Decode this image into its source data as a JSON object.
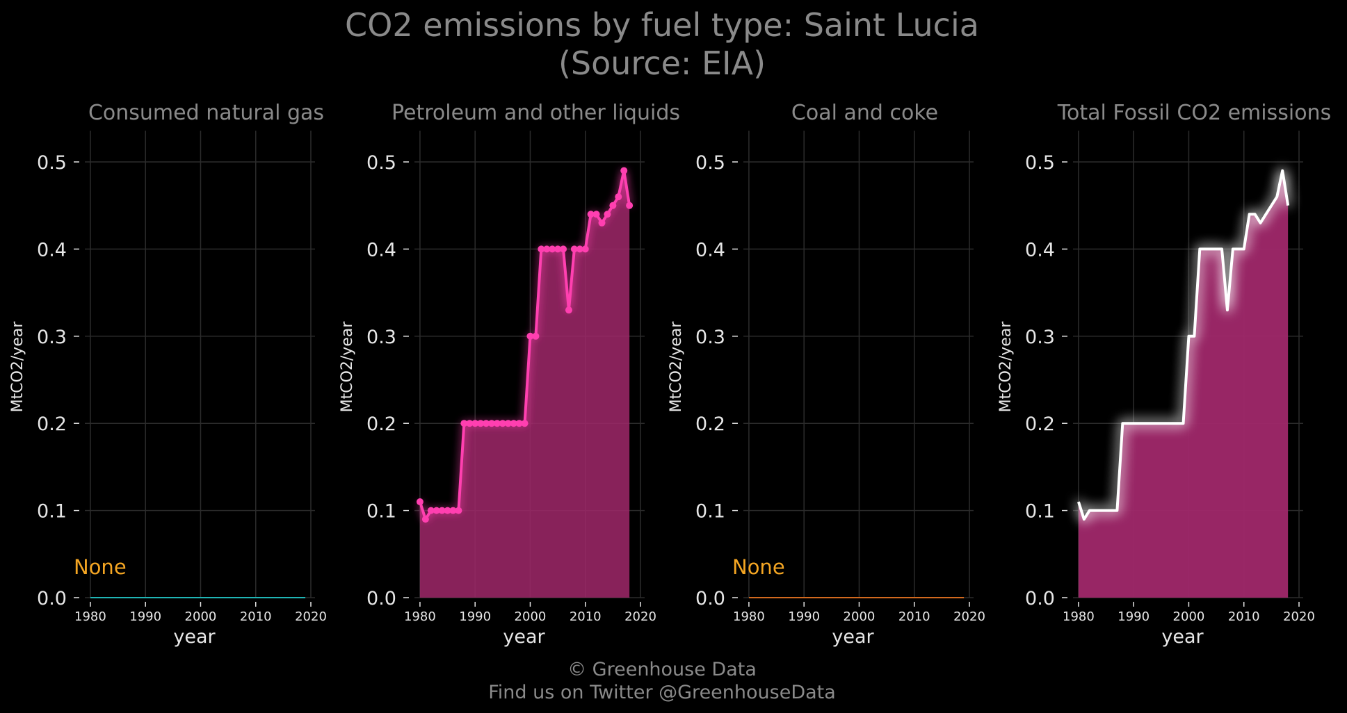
{
  "chart_data": {
    "type": "area",
    "title": "CO2 emissions by fuel type: Saint Lucia",
    "subtitle": "(Source: EIA)",
    "xlabel": "year",
    "ylabel": "MtCO2/year",
    "xlim": [
      1979,
      2020
    ],
    "ylim": [
      0,
      0.54
    ],
    "xticks": [
      1980,
      1990,
      2000,
      2010,
      2020
    ],
    "yticks": [
      0.0,
      0.1,
      0.2,
      0.3,
      0.4,
      0.5
    ],
    "ytick_labels": [
      "0.0",
      "0.1",
      "0.2",
      "0.3",
      "0.4",
      "0.5"
    ],
    "grid": true,
    "panels": [
      {
        "title": "Consumed natural gas",
        "color": "#1fb5b5",
        "annotation": "None",
        "series": [
          {
            "x": [
              1980,
              2019
            ],
            "values": [
              0,
              0
            ]
          }
        ]
      },
      {
        "title": "Petroleum and other liquids",
        "color": "#ff3fb0",
        "fill": "#a0286a",
        "markers": true,
        "series": [
          {
            "x": [
              1980,
              1981,
              1982,
              1983,
              1984,
              1985,
              1986,
              1987,
              1988,
              1989,
              1990,
              1991,
              1992,
              1993,
              1994,
              1995,
              1996,
              1997,
              1998,
              1999,
              2000,
              2001,
              2002,
              2003,
              2004,
              2005,
              2006,
              2007,
              2008,
              2009,
              2010,
              2011,
              2012,
              2013,
              2014,
              2015,
              2016,
              2017,
              2018
            ],
            "values": [
              0.11,
              0.09,
              0.1,
              0.1,
              0.1,
              0.1,
              0.1,
              0.1,
              0.2,
              0.2,
              0.2,
              0.2,
              0.2,
              0.2,
              0.2,
              0.2,
              0.2,
              0.2,
              0.2,
              0.2,
              0.3,
              0.3,
              0.4,
              0.4,
              0.4,
              0.4,
              0.4,
              0.33,
              0.4,
              0.4,
              0.4,
              0.44,
              0.44,
              0.43,
              0.44,
              0.45,
              0.46,
              0.49,
              0.45
            ]
          }
        ]
      },
      {
        "title": "Coal and coke",
        "color": "#d2691e",
        "annotation": "None",
        "series": [
          {
            "x": [
              1980,
              2019
            ],
            "values": [
              0,
              0
            ]
          }
        ]
      },
      {
        "title": "Total Fossil CO2 emissions",
        "color": "#ffffff",
        "fill": "#a0286a",
        "series": [
          {
            "x": [
              1980,
              1981,
              1982,
              1983,
              1984,
              1985,
              1986,
              1987,
              1988,
              1989,
              1990,
              1991,
              1992,
              1993,
              1994,
              1995,
              1996,
              1997,
              1998,
              1999,
              2000,
              2001,
              2002,
              2003,
              2004,
              2005,
              2006,
              2007,
              2008,
              2009,
              2010,
              2011,
              2012,
              2013,
              2014,
              2015,
              2016,
              2017,
              2018
            ],
            "values": [
              0.11,
              0.09,
              0.1,
              0.1,
              0.1,
              0.1,
              0.1,
              0.1,
              0.2,
              0.2,
              0.2,
              0.2,
              0.2,
              0.2,
              0.2,
              0.2,
              0.2,
              0.2,
              0.2,
              0.2,
              0.3,
              0.3,
              0.4,
              0.4,
              0.4,
              0.4,
              0.4,
              0.33,
              0.4,
              0.4,
              0.4,
              0.44,
              0.44,
              0.43,
              0.44,
              0.45,
              0.46,
              0.49,
              0.45
            ]
          }
        ]
      }
    ]
  },
  "footer": {
    "line1": "© Greenhouse Data",
    "line2": "Find us on Twitter @GreenhouseData"
  }
}
